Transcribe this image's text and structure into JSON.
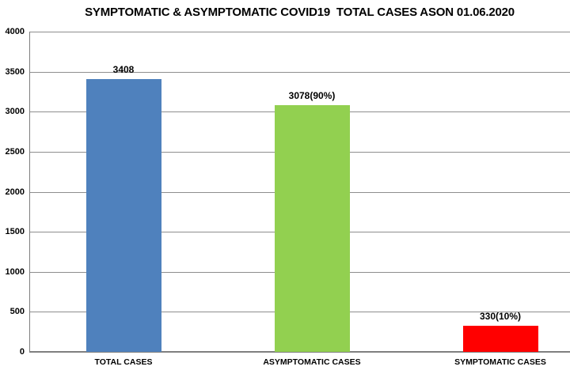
{
  "chart_data": {
    "type": "bar",
    "title": "SYMPTOMATIC & ASYMPTOMATIC COVID19  TOTAL CASES ASON 01.06.2020",
    "categories": [
      "TOTAL CASES",
      "ASYMPTOMATIC CASES",
      "SYMPTOMATIC CASES"
    ],
    "values": [
      3408,
      3078,
      330
    ],
    "data_labels": [
      "3408",
      "3078(90%)",
      "330(10%)"
    ],
    "bar_colors": [
      "#4F81BD",
      "#92D050",
      "#FF0000"
    ],
    "xlabel": "",
    "ylabel": "",
    "ylim": [
      0,
      4000
    ],
    "yticks": [
      0,
      500,
      1000,
      1500,
      2000,
      2500,
      3000,
      3500,
      4000
    ],
    "grid": true,
    "legend_position": "none",
    "colors": {
      "gridline": "#8E8E8E",
      "axis_line": "#7F7F7F",
      "text": "#000000",
      "background": "#FFFFFF"
    }
  }
}
